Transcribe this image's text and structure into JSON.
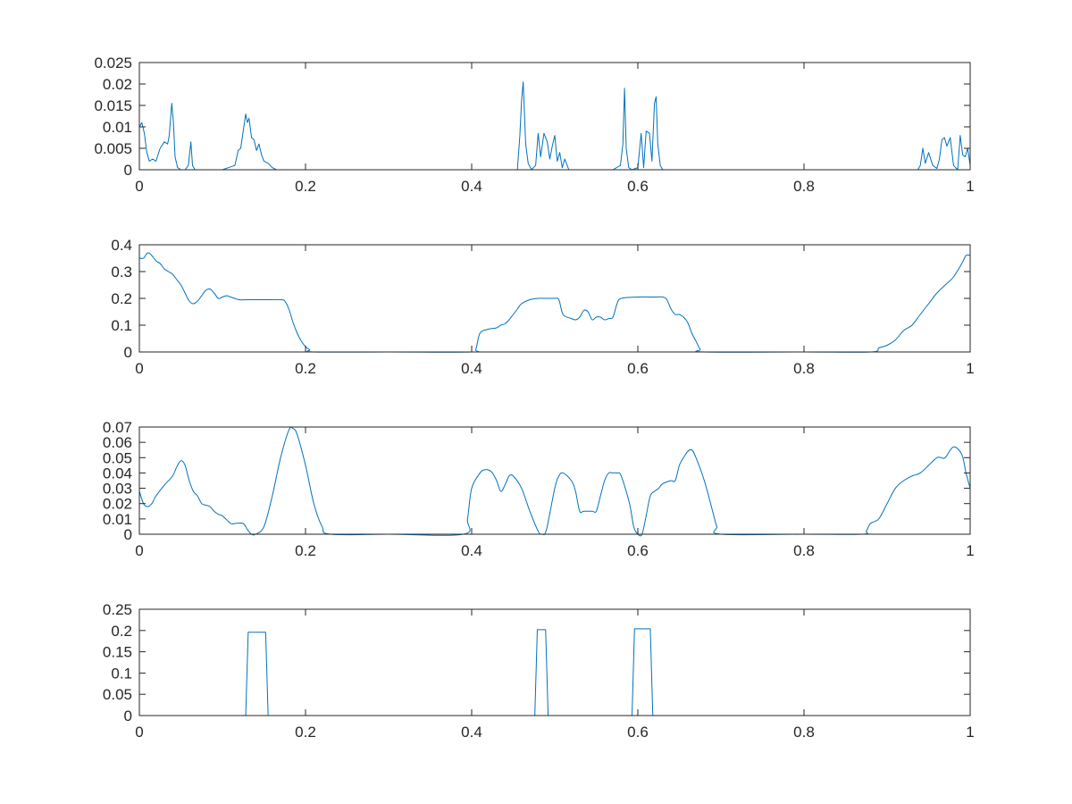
{
  "figure": {
    "line_color": "#0072BD",
    "axis_color": "#262626",
    "background": "#ffffff"
  },
  "chart_data": [
    {
      "type": "line",
      "xlim": [
        0,
        1
      ],
      "ylim": [
        0,
        0.025
      ],
      "x_ticks": [
        "0",
        "0.2",
        "0.4",
        "0.6",
        "0.8",
        "1"
      ],
      "y_ticks": [
        "0",
        "0.005",
        "0.01",
        "0.015",
        "0.02",
        "0.025"
      ],
      "grid": false,
      "series": [
        {
          "x": [
            0,
            0.003,
            0.006,
            0.009,
            0.012,
            0.016,
            0.02,
            0.025,
            0.03,
            0.034,
            0.036,
            0.039,
            0.041,
            0.043,
            0.046,
            0.05,
            0.055,
            0.059,
            0.062,
            0.064,
            0.067,
            0.07,
            0.1,
            0.115,
            0.119,
            0.122,
            0.125,
            0.128,
            0.13,
            0.132,
            0.135,
            0.138,
            0.141,
            0.144,
            0.147,
            0.15,
            0.155,
            0.16,
            0.165,
            0.2,
            0.3,
            0.4,
            0.455,
            0.458,
            0.46,
            0.462,
            0.465,
            0.468,
            0.472,
            0.477,
            0.48,
            0.483,
            0.487,
            0.491,
            0.494,
            0.497,
            0.5,
            0.503,
            0.506,
            0.509,
            0.512,
            0.517,
            0.52,
            0.55,
            0.57,
            0.579,
            0.582,
            0.584,
            0.586,
            0.589,
            0.593,
            0.6,
            0.604,
            0.607,
            0.61,
            0.614,
            0.617,
            0.62,
            0.622,
            0.624,
            0.627,
            0.63,
            0.635,
            0.7,
            0.85,
            0.937,
            0.94,
            0.943,
            0.946,
            0.95,
            0.955,
            0.96,
            0.963,
            0.966,
            0.969,
            0.972,
            0.976,
            0.98,
            0.985,
            0.988,
            0.991,
            0.994,
            0.997,
            1.0
          ],
          "y": [
            0.01,
            0.011,
            0.0085,
            0.004,
            0.002,
            0.0025,
            0.002,
            0.005,
            0.0065,
            0.006,
            0.008,
            0.0155,
            0.011,
            0.003,
            0.0005,
            0,
            0,
            0.001,
            0.0065,
            0.001,
            0,
            0,
            0,
            0.001,
            0.0045,
            0.005,
            0.009,
            0.013,
            0.011,
            0.012,
            0.0075,
            0.007,
            0.0045,
            0.006,
            0.0035,
            0.002,
            0.0015,
            0.0005,
            0,
            0,
            0,
            0,
            0,
            0.008,
            0.016,
            0.0205,
            0.006,
            0.0015,
            0,
            0.001,
            0.0085,
            0.003,
            0.0085,
            0.0065,
            0.0025,
            0.0055,
            0.008,
            0.002,
            0.004,
            0.0005,
            0.0025,
            0,
            0,
            0,
            0,
            0.001,
            0.006,
            0.019,
            0.005,
            0.0005,
            0,
            0.0005,
            0.0085,
            0.0005,
            0.009,
            0.0085,
            0.002,
            0.0155,
            0.017,
            0.006,
            0.001,
            0,
            0,
            0,
            0,
            0,
            0.001,
            0.005,
            0.0015,
            0.004,
            0.001,
            0.0003,
            0.0025,
            0.007,
            0.0075,
            0.0055,
            0.0075,
            0.001,
            0,
            0.008,
            0.0035,
            0.003,
            0.005,
            0.001
          ],
          "smooth": false
        }
      ]
    },
    {
      "type": "line",
      "xlim": [
        0,
        1
      ],
      "ylim": [
        0,
        0.4
      ],
      "x_ticks": [
        "0",
        "0.2",
        "0.4",
        "0.6",
        "0.8",
        "1"
      ],
      "y_ticks": [
        "0",
        "0.1",
        "0.2",
        "0.3",
        "0.4"
      ],
      "grid": false,
      "series": [
        {
          "x": [
            0,
            0.005,
            0.01,
            0.015,
            0.02,
            0.025,
            0.03,
            0.035,
            0.04,
            0.045,
            0.05,
            0.055,
            0.06,
            0.065,
            0.07,
            0.075,
            0.08,
            0.085,
            0.09,
            0.095,
            0.1,
            0.105,
            0.11,
            0.12,
            0.13,
            0.15,
            0.17,
            0.175,
            0.18,
            0.185,
            0.19,
            0.195,
            0.2,
            0.205,
            0.21,
            0.3,
            0.4,
            0.405,
            0.41,
            0.42,
            0.43,
            0.435,
            0.44,
            0.445,
            0.45,
            0.455,
            0.46,
            0.47,
            0.48,
            0.49,
            0.5,
            0.505,
            0.51,
            0.52,
            0.525,
            0.53,
            0.535,
            0.54,
            0.545,
            0.55,
            0.555,
            0.56,
            0.565,
            0.57,
            0.575,
            0.58,
            0.6,
            0.62,
            0.63,
            0.635,
            0.64,
            0.645,
            0.65,
            0.655,
            0.66,
            0.665,
            0.67,
            0.675,
            0.68,
            0.8,
            0.88,
            0.89,
            0.9,
            0.91,
            0.92,
            0.93,
            0.94,
            0.95,
            0.96,
            0.97,
            0.98,
            0.99,
            0.995,
            1.0
          ],
          "y": [
            0.35,
            0.35,
            0.37,
            0.36,
            0.34,
            0.33,
            0.31,
            0.3,
            0.29,
            0.27,
            0.25,
            0.22,
            0.19,
            0.18,
            0.19,
            0.21,
            0.23,
            0.235,
            0.22,
            0.2,
            0.205,
            0.21,
            0.205,
            0.195,
            0.195,
            0.195,
            0.195,
            0.19,
            0.16,
            0.11,
            0.07,
            0.04,
            0.02,
            0.008,
            0,
            0,
            0,
            0.01,
            0.07,
            0.085,
            0.09,
            0.1,
            0.105,
            0.12,
            0.14,
            0.16,
            0.18,
            0.195,
            0.2,
            0.2,
            0.2,
            0.195,
            0.14,
            0.125,
            0.12,
            0.13,
            0.155,
            0.15,
            0.12,
            0.13,
            0.13,
            0.12,
            0.125,
            0.13,
            0.18,
            0.2,
            0.205,
            0.205,
            0.205,
            0.195,
            0.16,
            0.14,
            0.14,
            0.13,
            0.11,
            0.07,
            0.04,
            0.01,
            0,
            0,
            0,
            0.015,
            0.025,
            0.045,
            0.08,
            0.1,
            0.14,
            0.18,
            0.22,
            0.25,
            0.28,
            0.33,
            0.36,
            0.36
          ],
          "smooth": true
        }
      ]
    },
    {
      "type": "line",
      "xlim": [
        0,
        1
      ],
      "ylim": [
        0,
        0.07
      ],
      "x_ticks": [
        "0",
        "0.2",
        "0.4",
        "0.6",
        "0.8",
        "1"
      ],
      "y_ticks": [
        "0",
        "0.01",
        "0.02",
        "0.03",
        "0.04",
        "0.05",
        "0.06",
        "0.07"
      ],
      "grid": false,
      "series": [
        {
          "x": [
            0,
            0.005,
            0.01,
            0.015,
            0.02,
            0.03,
            0.04,
            0.045,
            0.05,
            0.055,
            0.06,
            0.065,
            0.07,
            0.075,
            0.08,
            0.085,
            0.09,
            0.095,
            0.1,
            0.11,
            0.115,
            0.125,
            0.13,
            0.135,
            0.14,
            0.15,
            0.16,
            0.17,
            0.18,
            0.185,
            0.19,
            0.2,
            0.21,
            0.22,
            0.23,
            0.3,
            0.39,
            0.395,
            0.4,
            0.41,
            0.415,
            0.42,
            0.425,
            0.43,
            0.435,
            0.44,
            0.445,
            0.45,
            0.46,
            0.47,
            0.48,
            0.485,
            0.49,
            0.5,
            0.505,
            0.51,
            0.52,
            0.525,
            0.53,
            0.535,
            0.545,
            0.55,
            0.555,
            0.56,
            0.565,
            0.57,
            0.575,
            0.58,
            0.59,
            0.595,
            0.6,
            0.605,
            0.61,
            0.615,
            0.62,
            0.625,
            0.63,
            0.64,
            0.645,
            0.65,
            0.655,
            0.66,
            0.665,
            0.67,
            0.68,
            0.69,
            0.695,
            0.7,
            0.8,
            0.87,
            0.875,
            0.88,
            0.89,
            0.9,
            0.91,
            0.92,
            0.93,
            0.94,
            0.95,
            0.96,
            0.965,
            0.97,
            0.98,
            0.99,
            0.995,
            1.0
          ],
          "y": [
            0.028,
            0.02,
            0.018,
            0.02,
            0.025,
            0.032,
            0.038,
            0.044,
            0.048,
            0.045,
            0.035,
            0.028,
            0.025,
            0.02,
            0.019,
            0.018,
            0.015,
            0.013,
            0.012,
            0.007,
            0.007,
            0.007,
            0.003,
            0,
            0,
            0.005,
            0.025,
            0.05,
            0.068,
            0.069,
            0.065,
            0.045,
            0.02,
            0.005,
            0,
            0,
            0,
            0.01,
            0.03,
            0.04,
            0.042,
            0.042,
            0.04,
            0.035,
            0.028,
            0.032,
            0.038,
            0.038,
            0.03,
            0.015,
            0.002,
            0,
            0.003,
            0.03,
            0.038,
            0.04,
            0.035,
            0.028,
            0.015,
            0.015,
            0.015,
            0.015,
            0.025,
            0.035,
            0.04,
            0.04,
            0.04,
            0.038,
            0.02,
            0.005,
            0,
            0,
            0.012,
            0.025,
            0.028,
            0.03,
            0.033,
            0.035,
            0.035,
            0.045,
            0.05,
            0.054,
            0.055,
            0.05,
            0.035,
            0.015,
            0.005,
            0,
            0,
            0,
            0.002,
            0.007,
            0.01,
            0.02,
            0.03,
            0.035,
            0.038,
            0.04,
            0.045,
            0.05,
            0.05,
            0.05,
            0.057,
            0.052,
            0.04,
            0.03
          ],
          "smooth": true
        }
      ]
    },
    {
      "type": "line",
      "xlim": [
        0,
        1
      ],
      "ylim": [
        0,
        0.25
      ],
      "x_ticks": [
        "0",
        "0.2",
        "0.4",
        "0.6",
        "0.8",
        "1"
      ],
      "y_ticks": [
        "0",
        "0.05",
        "0.1",
        "0.15",
        "0.2",
        "0.25"
      ],
      "grid": false,
      "series": [
        {
          "x": [
            0,
            0.128,
            0.131,
            0.152,
            0.155,
            0.476,
            0.479,
            0.489,
            0.492,
            0.593,
            0.596,
            0.615,
            0.618,
            1.0
          ],
          "y": [
            0,
            0,
            0.196,
            0.196,
            0,
            0,
            0.202,
            0.202,
            0,
            0,
            0.204,
            0.204,
            0,
            0
          ],
          "smooth": false
        }
      ]
    }
  ]
}
